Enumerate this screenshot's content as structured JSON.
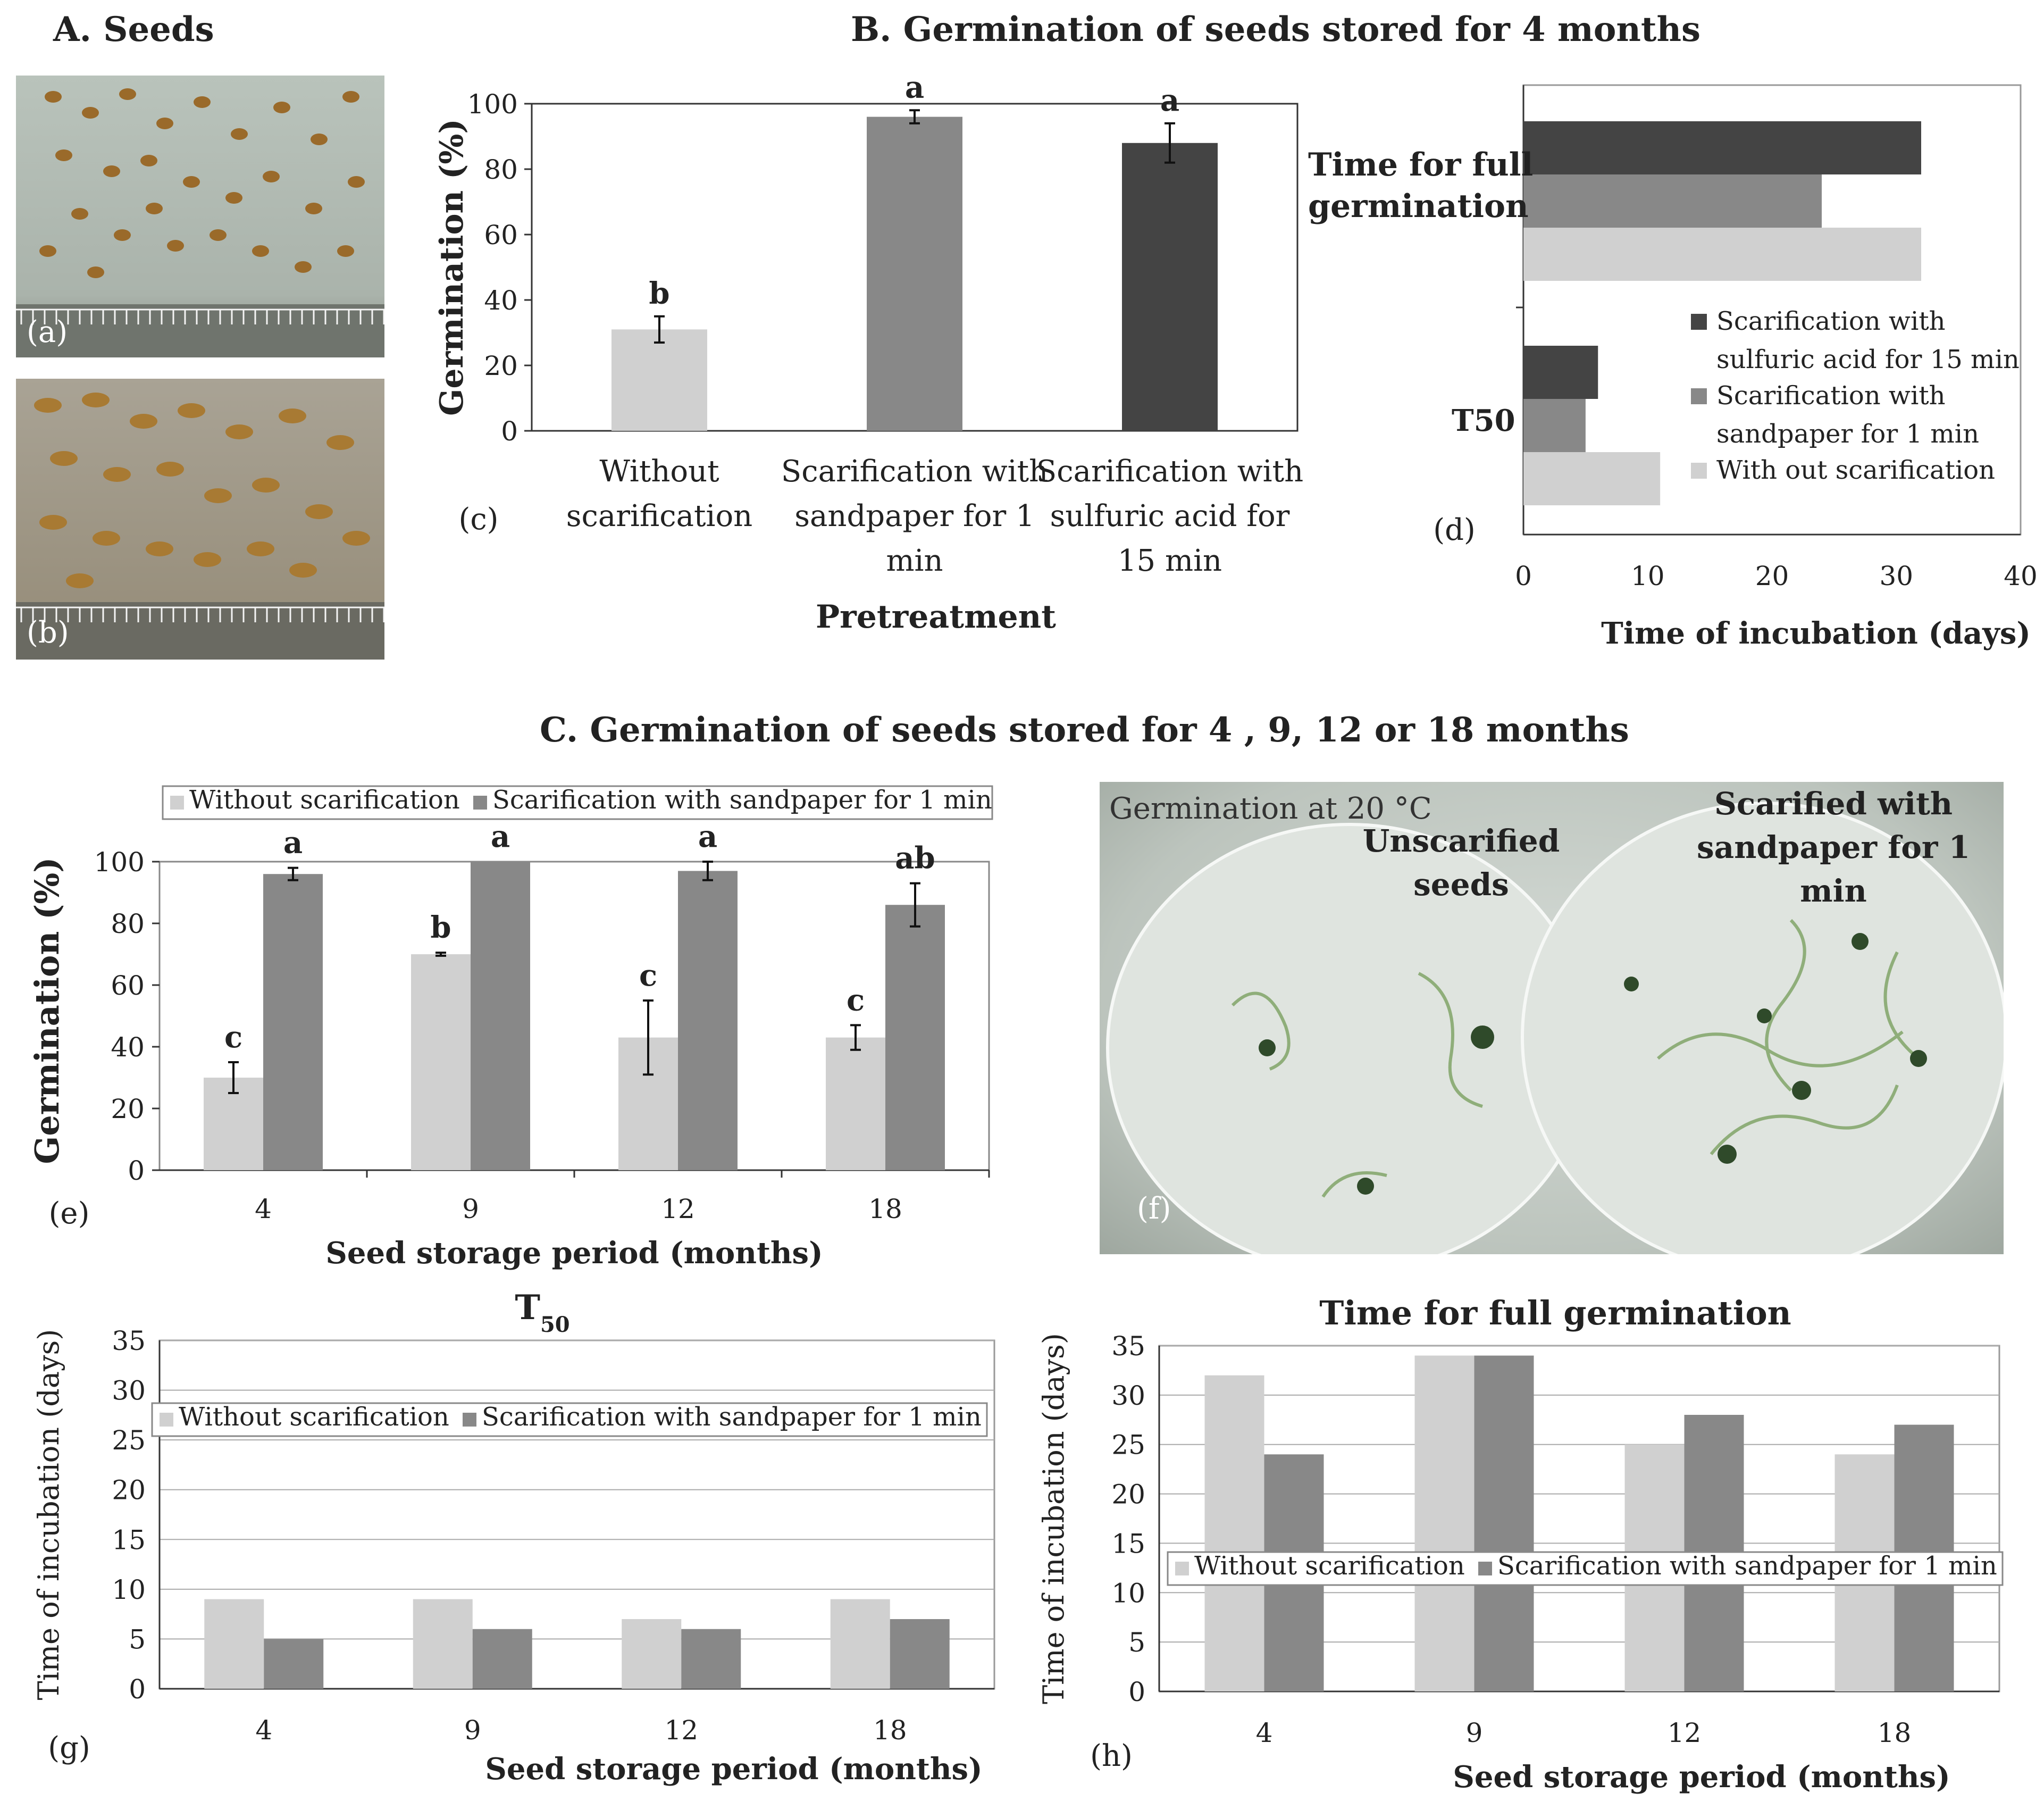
{
  "sections": {
    "a": "A. Seeds",
    "b": "B. Germination of seeds stored for 4 months",
    "c": "C. Germination of seeds stored for 4 , 9, 12 or 18 months"
  },
  "photos": {
    "a_label": "(a)",
    "b_label": "(b)",
    "f_label": "(f)",
    "f_caption": "Germination at 20 °C",
    "f_left": "Unscarified seeds",
    "f_right": "Scarified with sandpaper for 1 min"
  },
  "colors": {
    "light": "#d0d0d0",
    "mid": "#888888",
    "dark": "#444444"
  },
  "chart_data": [
    {
      "id": "c",
      "panel_label": "(c)",
      "type": "bar",
      "categories": [
        "Without scarification",
        "Scarification with sandpaper for 1 min",
        "Scarification with sulfuric acid for 15 min"
      ],
      "values": [
        31,
        96,
        88
      ],
      "errors": [
        4,
        2,
        6
      ],
      "letters": [
        "b",
        "a",
        "a"
      ],
      "xlabel": "Pretreatment",
      "ylabel": "Germination (%)",
      "ylim": [
        0,
        100
      ],
      "yticks": [
        0,
        20,
        40,
        60,
        80,
        100
      ]
    },
    {
      "id": "d",
      "panel_label": "(d)",
      "type": "bar",
      "orientation": "horizontal",
      "categories": [
        "Time for full germination",
        "T50"
      ],
      "series": [
        {
          "name": "Scarification with sulfuric acid for 15 min",
          "values": [
            32,
            6
          ]
        },
        {
          "name": "Scarification with sandpaper for 1 min",
          "values": [
            24,
            5
          ]
        },
        {
          "name": "With out scarification",
          "values": [
            32,
            11
          ]
        }
      ],
      "xlabel": "Time of incubation (days)",
      "xlim": [
        0,
        40
      ],
      "xticks": [
        0,
        10,
        20,
        30,
        40
      ],
      "legend": "right"
    },
    {
      "id": "e",
      "panel_label": "(e)",
      "type": "bar",
      "categories": [
        "4",
        "9",
        "12",
        "18"
      ],
      "series": [
        {
          "name": "Without scarification",
          "values": [
            30,
            70,
            43,
            43
          ],
          "errors": [
            5,
            0.5,
            12,
            4
          ],
          "letters": [
            "c",
            "b",
            "c",
            "c"
          ]
        },
        {
          "name": "Scarification with sandpaper for 1 min",
          "values": [
            96,
            100,
            97,
            86
          ],
          "errors": [
            2,
            0,
            3,
            7
          ],
          "letters": [
            "a",
            "a",
            "a",
            "ab"
          ]
        }
      ],
      "xlabel": "Seed storage period (months)",
      "ylabel": "Germination (%)",
      "ylim": [
        0,
        100
      ],
      "yticks": [
        0,
        20,
        40,
        60,
        80,
        100
      ],
      "legend": "top"
    },
    {
      "id": "g",
      "panel_label": "(g)",
      "type": "bar",
      "title": "T50",
      "categories": [
        "4",
        "9",
        "12",
        "18"
      ],
      "series": [
        {
          "name": "Without scarification",
          "values": [
            9,
            9,
            7,
            9
          ]
        },
        {
          "name": "Scarification with sandpaper for 1 min",
          "values": [
            5,
            6,
            6,
            7
          ]
        }
      ],
      "xlabel": "Seed storage period (months)",
      "ylabel": "Time of incubation (days)",
      "ylim": [
        0,
        35
      ],
      "yticks": [
        0,
        5,
        10,
        15,
        20,
        25,
        30,
        35
      ],
      "grid": true,
      "legend": "top"
    },
    {
      "id": "h",
      "panel_label": "(h)",
      "type": "bar",
      "title": "Time for full germination",
      "categories": [
        "4",
        "9",
        "12",
        "18"
      ],
      "series": [
        {
          "name": "Without scarification",
          "values": [
            32,
            34,
            25,
            24
          ]
        },
        {
          "name": "Scarification with sandpaper for 1 min",
          "values": [
            24,
            34,
            28,
            27
          ]
        }
      ],
      "xlabel": "Seed storage period (months)",
      "ylabel": "Time of incubation (days)",
      "ylim": [
        0,
        35
      ],
      "yticks": [
        0,
        5,
        10,
        15,
        20,
        25,
        30,
        35
      ],
      "grid": true,
      "legend": "middle"
    }
  ]
}
